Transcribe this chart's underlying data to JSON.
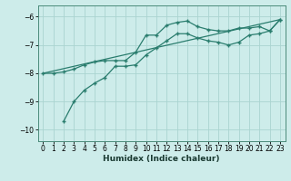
{
  "xlabel": "Humidex (Indice chaleur)",
  "bg_color": "#cdecea",
  "grid_color": "#aad4d0",
  "line_color": "#2a7d6e",
  "xlim": [
    -0.5,
    23.5
  ],
  "ylim": [
    -10.4,
    -5.6
  ],
  "yticks": [
    -10,
    -9,
    -8,
    -7,
    -6
  ],
  "xticks": [
    0,
    1,
    2,
    3,
    4,
    5,
    6,
    7,
    8,
    9,
    10,
    11,
    12,
    13,
    14,
    15,
    16,
    17,
    18,
    19,
    20,
    21,
    22,
    23
  ],
  "line1_x": [
    0,
    1,
    2,
    3,
    4,
    5,
    6,
    7,
    8,
    9,
    10,
    11,
    12,
    13,
    14,
    15,
    16,
    17,
    18,
    19,
    20,
    21,
    22,
    23
  ],
  "line1_y": [
    -8.0,
    -8.0,
    -7.95,
    -7.85,
    -7.7,
    -7.6,
    -7.55,
    -7.55,
    -7.55,
    -7.25,
    -6.65,
    -6.65,
    -6.3,
    -6.2,
    -6.15,
    -6.35,
    -6.45,
    -6.5,
    -6.5,
    -6.4,
    -6.4,
    -6.35,
    -6.5,
    -6.1
  ],
  "line2_x": [
    2,
    3,
    4,
    5,
    6,
    7,
    8,
    9,
    10,
    11,
    12,
    13,
    14,
    15,
    16,
    17,
    18,
    19,
    20,
    21,
    22,
    23
  ],
  "line2_y": [
    -9.7,
    -9.0,
    -8.6,
    -8.35,
    -8.15,
    -7.75,
    -7.75,
    -7.7,
    -7.35,
    -7.1,
    -6.85,
    -6.6,
    -6.6,
    -6.75,
    -6.85,
    -6.9,
    -7.0,
    -6.9,
    -6.65,
    -6.6,
    -6.5,
    -6.1
  ],
  "line3_x": [
    0,
    23
  ],
  "line3_y": [
    -8.0,
    -6.1
  ]
}
